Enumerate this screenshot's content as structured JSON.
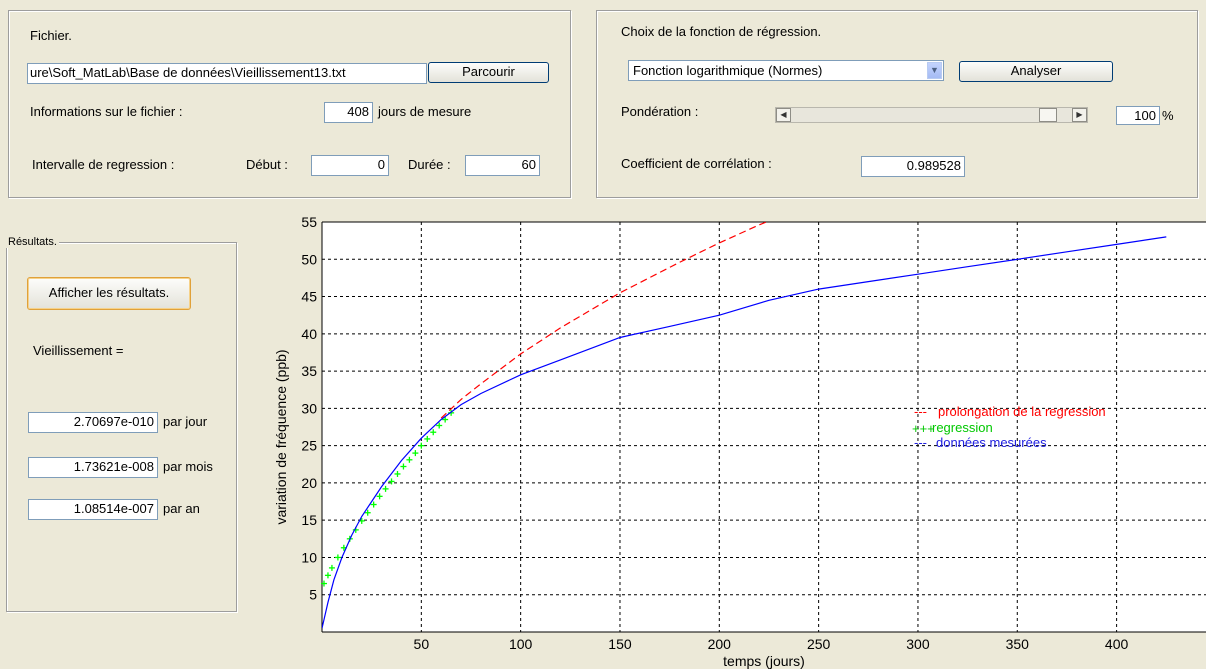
{
  "file_panel": {
    "title": "Fichier.",
    "path_value": "ure\\Soft_MatLab\\Base de données\\Vieillissement13.txt",
    "browse_label": "Parcourir",
    "info_label": "Informations sur le fichier :",
    "days_value": "408",
    "days_suffix": "jours de mesure",
    "interval_label": "Intervalle de regression :",
    "start_label": "Début :",
    "start_value": "0",
    "duration_label": "Durée :",
    "duration_value": "60"
  },
  "regression_panel": {
    "title": "Choix de la fonction de régression.",
    "function_selected": "Fonction logarithmique (Normes)",
    "analyze_label": "Analyser",
    "weighting_label": "Pondération :",
    "weighting_value": "100",
    "weighting_unit": "%",
    "weighting_level": 1.0,
    "correlation_label": "Coefficient de corrélation :",
    "correlation_value": "0.989528"
  },
  "results_panel": {
    "title": "Résultats.",
    "show_button": "Afficher les résultats.",
    "aging_label": "Vieillissement  =",
    "per_day_value": "2.70697e-010",
    "per_day_label": "par jour",
    "per_month_value": "1.73621e-008",
    "per_month_label": "par mois",
    "per_year_value": "1.08514e-007",
    "per_year_label": "par an"
  },
  "colors": {
    "background": "#ece9d8",
    "measured": "#0000ff",
    "regression": "#00ff00",
    "extension": "#ff0000"
  },
  "chart_data": {
    "type": "line",
    "xlabel": "temps (jours)",
    "ylabel": "variation de fréquence (ppb)",
    "xlim": [
      0,
      445
    ],
    "ylim": [
      0,
      55
    ],
    "xticks": [
      50,
      100,
      150,
      200,
      250,
      300,
      350,
      400
    ],
    "yticks": [
      5,
      10,
      15,
      20,
      25,
      30,
      35,
      40,
      45,
      50,
      55
    ],
    "grid": true,
    "legend_position": "right",
    "series": [
      {
        "name": "prolongation de la regression",
        "style": "dashed",
        "color": "#ff0000",
        "x": [
          60,
          70,
          80,
          100,
          120,
          150,
          180,
          200,
          220,
          230
        ],
        "y": [
          28.7,
          31.2,
          33.3,
          37.3,
          40.8,
          45.5,
          49.6,
          52.2,
          54.6,
          55.7
        ]
      },
      {
        "name": "regression",
        "style": "plus",
        "color": "#00ff00",
        "x": [
          1,
          3,
          5,
          8,
          11,
          14,
          17,
          20,
          23,
          26,
          29,
          32,
          35,
          38,
          41,
          44,
          47,
          50,
          53,
          56,
          59,
          62,
          65
        ],
        "y": [
          6.5,
          7.6,
          8.6,
          10.0,
          11.3,
          12.5,
          13.7,
          14.9,
          16.0,
          17.1,
          18.2,
          19.2,
          20.2,
          21.2,
          22.2,
          23.1,
          24.0,
          25.0,
          25.9,
          26.8,
          27.7,
          28.5,
          29.4
        ]
      },
      {
        "name": "données mesurées",
        "style": "solid",
        "color": "#0000ff",
        "x": [
          0,
          3,
          6,
          10,
          15,
          20,
          25,
          30,
          40,
          50,
          60,
          70,
          80,
          100,
          120,
          150,
          175,
          200,
          225,
          250,
          275,
          300,
          325,
          350,
          375,
          400,
          425
        ],
        "y": [
          0.5,
          4,
          7,
          10,
          13,
          15.5,
          17.5,
          19.5,
          23,
          26,
          28.5,
          30.5,
          32,
          34.5,
          36.5,
          39.5,
          41,
          42.5,
          44.5,
          46,
          47,
          48,
          49,
          50,
          51,
          52,
          53
        ]
      }
    ]
  }
}
